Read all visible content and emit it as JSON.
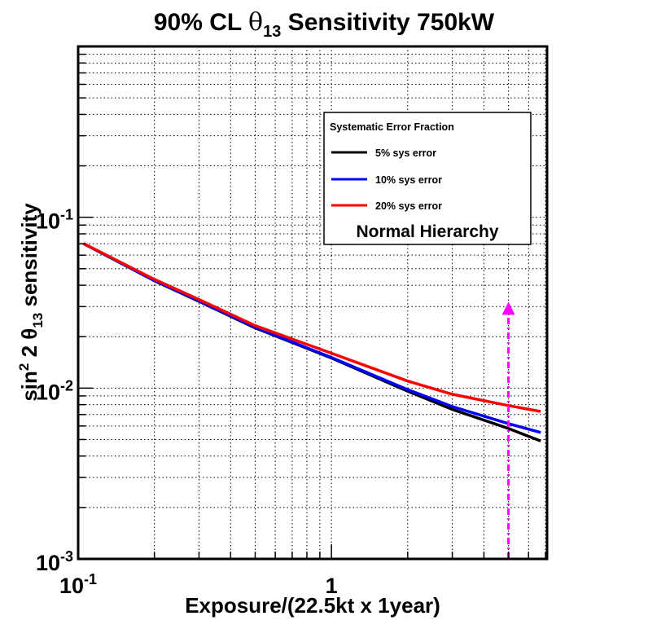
{
  "chart_data": {
    "type": "line",
    "title": {
      "prefix": "90% CL ",
      "symbol": "θ",
      "subscript": "13",
      "suffix": " Sensitivity 750kW"
    },
    "xlabel": "Exposure/(22.5kt x 1year)",
    "ylabel": {
      "prefix": "sin",
      "sup": "2",
      "mid": " 2 θ",
      "sub": "13",
      "suffix": " sensitivity"
    },
    "xscale": "log",
    "yscale": "log",
    "xlim": [
      0.1,
      7.1
    ],
    "ylim": [
      0.001,
      1
    ],
    "grid": true,
    "x_ticks": [
      {
        "value": 0.1,
        "base": "10",
        "exp": "-1"
      },
      {
        "value": 1,
        "base": "1",
        "exp": ""
      }
    ],
    "y_ticks": [
      {
        "value": 0.001,
        "base": "10",
        "exp": "-3"
      },
      {
        "value": 0.01,
        "base": "10",
        "exp": "-2"
      },
      {
        "value": 0.1,
        "base": "10",
        "exp": "-1"
      }
    ],
    "legend": {
      "title": "Systematic Error Fraction",
      "note": "Normal Hierarchy",
      "placement": "top-right"
    },
    "series": [
      {
        "name": "5% sys error",
        "color": "#000000",
        "x": [
          0.105,
          0.2,
          0.3,
          0.5,
          1.0,
          2.0,
          3.0,
          5.0,
          6.7
        ],
        "y": [
          0.0701,
          0.0425,
          0.0322,
          0.0225,
          0.015,
          0.0096,
          0.0075,
          0.0058,
          0.0049
        ]
      },
      {
        "name": "10% sys error",
        "color": "#0000ff",
        "x": [
          0.105,
          0.2,
          0.3,
          0.5,
          1.0,
          2.0,
          3.0,
          5.0,
          6.7
        ],
        "y": [
          0.0701,
          0.0427,
          0.0324,
          0.0227,
          0.0151,
          0.0098,
          0.0078,
          0.0062,
          0.0055
        ]
      },
      {
        "name": "20% sys error",
        "color": "#ff0000",
        "x": [
          0.105,
          0.2,
          0.3,
          0.5,
          1.0,
          2.0,
          3.0,
          5.0,
          6.7
        ],
        "y": [
          0.0703,
          0.0433,
          0.033,
          0.0232,
          0.016,
          0.011,
          0.0092,
          0.0079,
          0.0073
        ]
      }
    ],
    "annotations": [
      {
        "type": "arrow",
        "style": "dash-dot",
        "color": "#ff00ff",
        "x": 5.0,
        "y_from": 0.001,
        "y_to": 0.032
      }
    ]
  }
}
